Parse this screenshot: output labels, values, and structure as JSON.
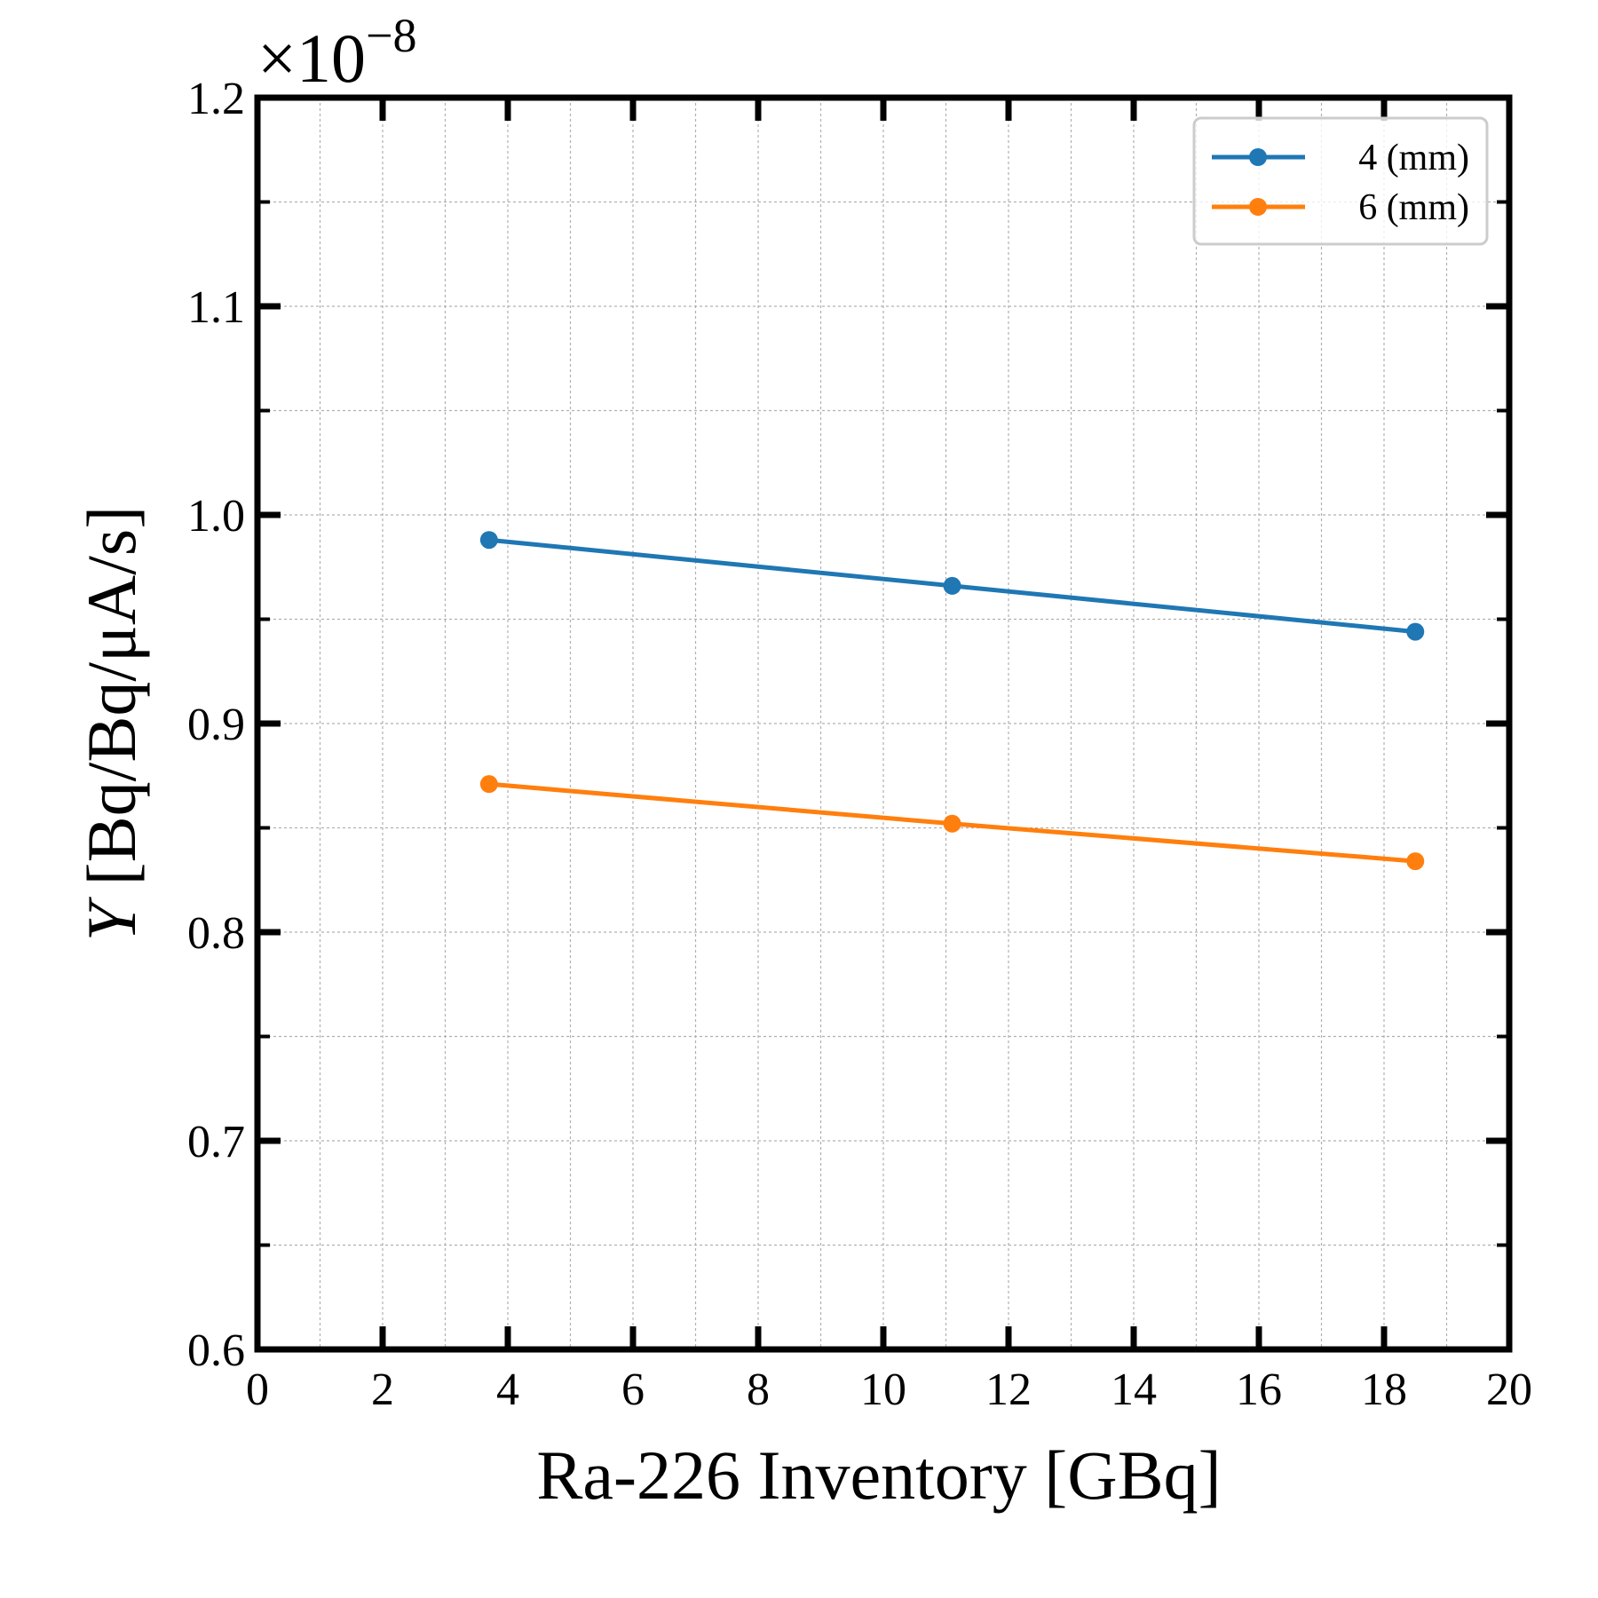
{
  "chart_data": {
    "type": "line",
    "title": "",
    "xlabel": "Ra-226 Inventory [GBq]",
    "ylabel_symbol": "Y",
    "ylabel_units": " [Bq/Bq/μA/s]",
    "y_multiplier_base": "×10",
    "y_multiplier_exponent": "−8",
    "xlim": [
      0,
      20
    ],
    "ylim": [
      0.6,
      1.2
    ],
    "xticks": [
      0,
      2,
      4,
      6,
      8,
      10,
      12,
      14,
      16,
      18,
      20
    ],
    "xtick_labels": [
      "0",
      "2",
      "4",
      "6",
      "8",
      "10",
      "12",
      "14",
      "16",
      "18",
      "20"
    ],
    "yticks": [
      0.6,
      0.7,
      0.8,
      0.9,
      1.0,
      1.1,
      1.2
    ],
    "ytick_labels": [
      "0.6",
      "0.7",
      "0.8",
      "0.9",
      "1.0",
      "1.1",
      "1.2"
    ],
    "grid": true,
    "legend_position": "top-right",
    "series": [
      {
        "name": "4 (mm)",
        "color": "#1f77b4",
        "x": [
          3.7,
          11.1,
          18.5
        ],
        "y": [
          0.988,
          0.966,
          0.944
        ]
      },
      {
        "name": "6 (mm)",
        "color": "#ff7f0e",
        "x": [
          3.7,
          11.1,
          18.5
        ],
        "y": [
          0.871,
          0.852,
          0.834
        ]
      }
    ]
  }
}
